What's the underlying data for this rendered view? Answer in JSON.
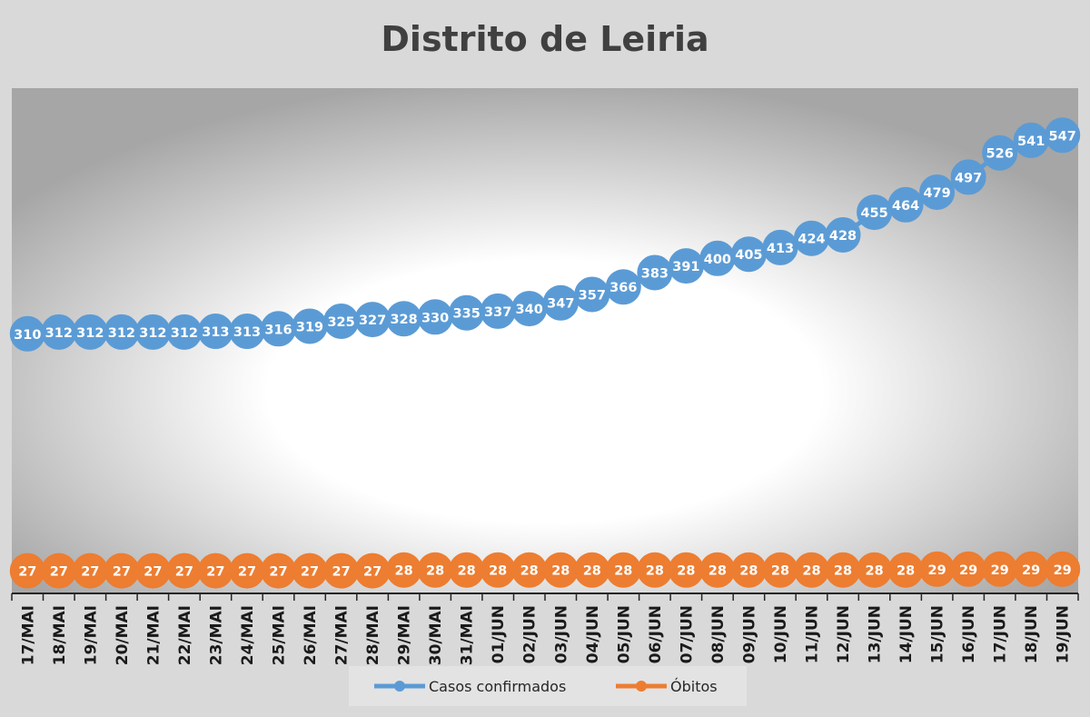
{
  "chart_data": {
    "type": "line",
    "title": "Distrito de Leiria",
    "categories": [
      "17/MAI",
      "18/MAI",
      "19/MAI",
      "20/MAI",
      "21/MAI",
      "22/MAI",
      "23/MAI",
      "24/MAI",
      "25/MAI",
      "26/MAI",
      "27/MAI",
      "28/MAI",
      "29/MAI",
      "30/MAI",
      "31/MAI",
      "01/JUN",
      "02/JUN",
      "03/JUN",
      "04/JUN",
      "05/JUN",
      "06/JUN",
      "07/JUN",
      "08/JUN",
      "09/JUN",
      "10/JUN",
      "11/JUN",
      "12/JUN",
      "13/JUN",
      "14/JUN",
      "15/JUN",
      "16/JUN",
      "17/JUN",
      "18/JUN",
      "19/JUN"
    ],
    "series": [
      {
        "name": "Casos confirmados",
        "color": "#5b9bd5",
        "values": [
          310,
          312,
          312,
          312,
          312,
          312,
          313,
          313,
          316,
          319,
          325,
          327,
          328,
          330,
          335,
          337,
          340,
          347,
          357,
          366,
          383,
          391,
          400,
          405,
          413,
          424,
          428,
          455,
          464,
          479,
          497,
          526,
          541,
          547
        ]
      },
      {
        "name": "Óbitos",
        "color": "#ed7d31",
        "values": [
          27,
          27,
          27,
          27,
          27,
          27,
          27,
          27,
          27,
          27,
          27,
          27,
          28,
          28,
          28,
          28,
          28,
          28,
          28,
          28,
          28,
          28,
          28,
          28,
          28,
          28,
          28,
          28,
          28,
          29,
          29,
          29,
          29,
          29
        ]
      }
    ],
    "ylim": [
      0,
      600
    ],
    "grid": false,
    "legend_position": "bottom",
    "data_labels": true
  }
}
